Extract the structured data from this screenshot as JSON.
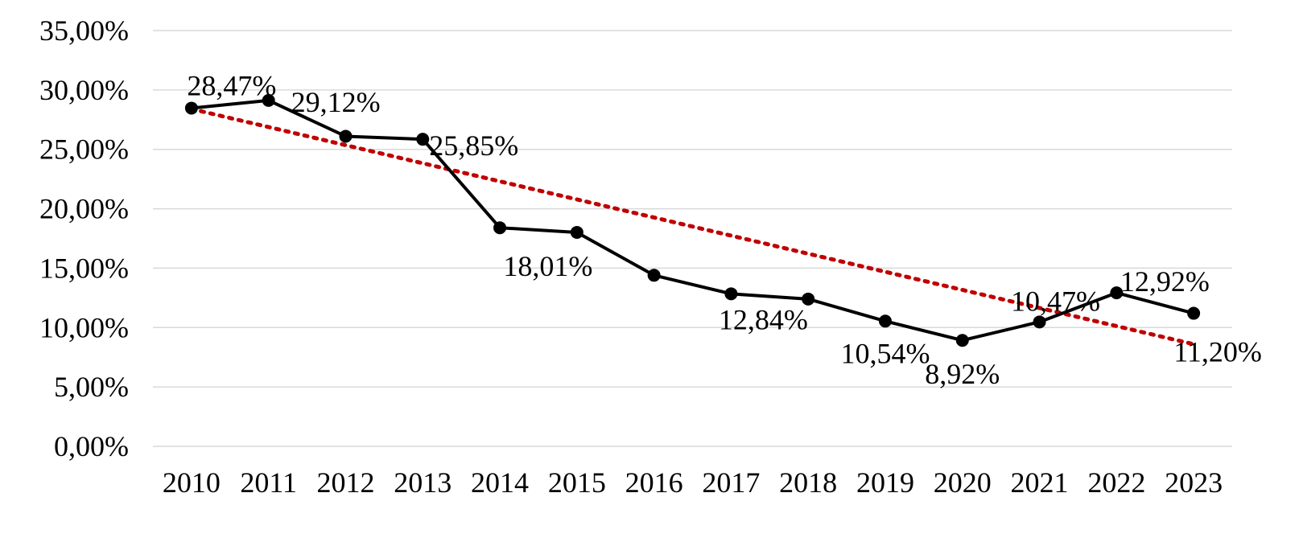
{
  "chart_data": {
    "type": "line",
    "categories": [
      "2010",
      "2011",
      "2012",
      "2013",
      "2014",
      "2015",
      "2016",
      "2017",
      "2018",
      "2019",
      "2020",
      "2021",
      "2022",
      "2023"
    ],
    "series": [
      {
        "values": [
          28.47,
          29.12,
          26.1,
          25.85,
          18.4,
          18.01,
          14.4,
          12.84,
          12.4,
          10.54,
          8.92,
          10.47,
          12.92,
          11.2
        ],
        "color": "#000000",
        "marker": "circle"
      }
    ],
    "trendline": {
      "start": 28.4,
      "end": 8.6,
      "color": "#c00000",
      "style": "dotted"
    },
    "data_labels": [
      {
        "index": 0,
        "text": "28,47%"
      },
      {
        "index": 1,
        "text": "29,12%"
      },
      {
        "index": 3,
        "text": "25,85%"
      },
      {
        "index": 5,
        "text": "18,01%"
      },
      {
        "index": 7,
        "text": "12,84%"
      },
      {
        "index": 9,
        "text": "10,54%"
      },
      {
        "index": 10,
        "text": "8,92%"
      },
      {
        "index": 11,
        "text": "10,47%"
      },
      {
        "index": 12,
        "text": "12,92%"
      },
      {
        "index": 13,
        "text": "11,20%"
      }
    ],
    "yticks": [
      "0,00%",
      "5,00%",
      "10,00%",
      "15,00%",
      "20,00%",
      "25,00%",
      "30,00%",
      "35,00%"
    ],
    "ylim": [
      0,
      35
    ],
    "grid": true,
    "gridColor": "#d9d9d9"
  }
}
